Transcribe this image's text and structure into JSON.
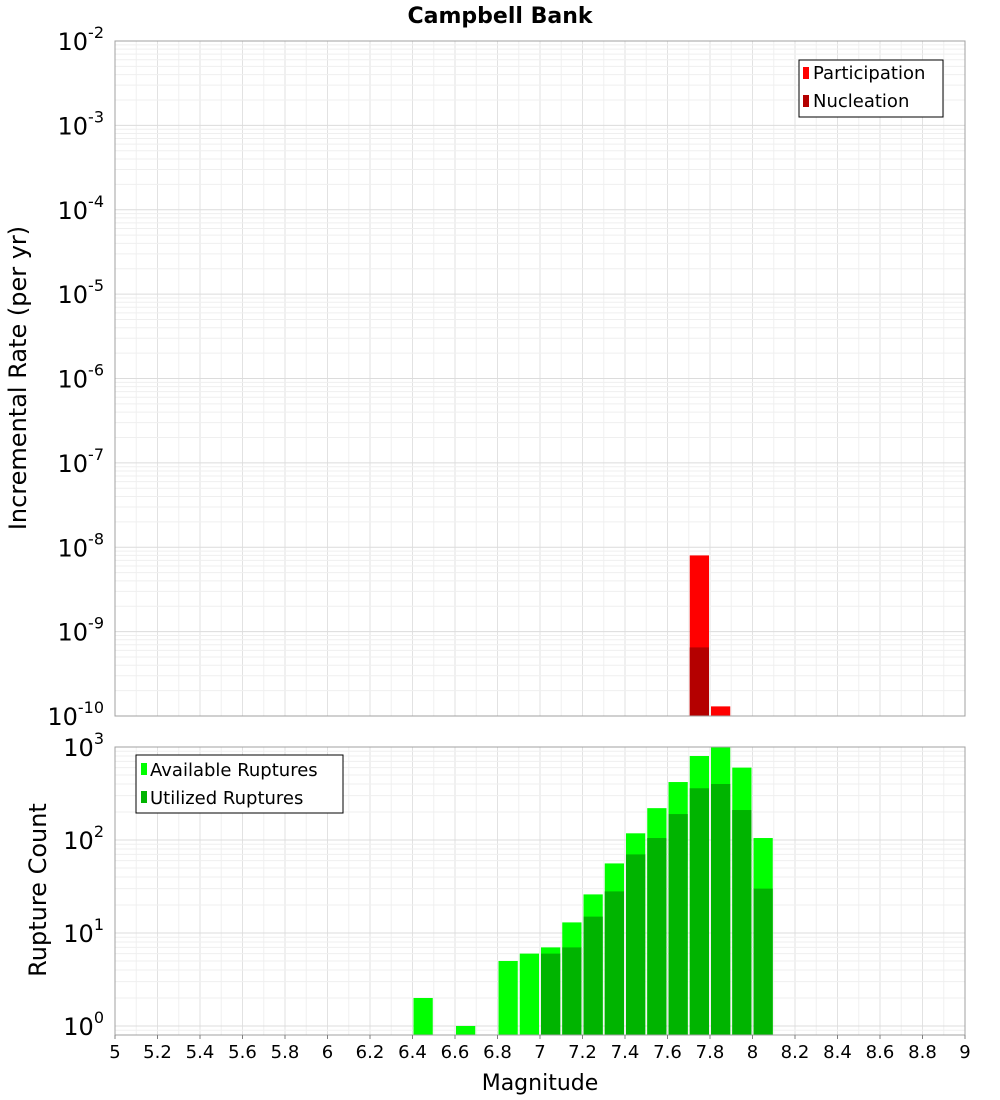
{
  "chart_data": [
    {
      "type": "bar",
      "title": "Campbell Bank",
      "ylabel": "Incremental Rate (per yr)",
      "y_scale": "log",
      "ylim": [
        1e-10,
        0.01
      ],
      "xlim": [
        5,
        9
      ],
      "grid": true,
      "bar_width": 0.1,
      "legend_position": "top-right",
      "y_ticks": [
        {
          "base": "10",
          "exp": "-10"
        },
        {
          "base": "10",
          "exp": "-9"
        },
        {
          "base": "10",
          "exp": "-8"
        },
        {
          "base": "10",
          "exp": "-7"
        },
        {
          "base": "10",
          "exp": "-6"
        },
        {
          "base": "10",
          "exp": "-5"
        },
        {
          "base": "10",
          "exp": "-4"
        },
        {
          "base": "10",
          "exp": "-3"
        },
        {
          "base": "10",
          "exp": "-2"
        }
      ],
      "series": [
        {
          "name": "Participation",
          "color": "#ff0000",
          "points": [
            {
              "x": 7.75,
              "y": 8e-09
            },
            {
              "x": 7.85,
              "y": 1.3e-10
            }
          ]
        },
        {
          "name": "Nucleation",
          "color": "#b40000",
          "points": [
            {
              "x": 7.75,
              "y": 6.5e-10
            }
          ]
        }
      ]
    },
    {
      "type": "bar",
      "ylabel": "Rupture Count",
      "xlabel": "Magnitude",
      "y_scale": "log",
      "ylim": [
        0.8,
        1000
      ],
      "xlim": [
        5,
        9
      ],
      "grid": true,
      "bar_width": 0.1,
      "legend_position": "top-left",
      "x_ticks": [
        "5",
        "5.2",
        "5.4",
        "5.6",
        "5.8",
        "6",
        "6.2",
        "6.4",
        "6.6",
        "6.8",
        "7",
        "7.2",
        "7.4",
        "7.6",
        "7.8",
        "8",
        "8.2",
        "8.4",
        "8.6",
        "8.8",
        "9"
      ],
      "y_ticks": [
        {
          "base": "10",
          "exp": "0"
        },
        {
          "base": "10",
          "exp": "1"
        },
        {
          "base": "10",
          "exp": "2"
        },
        {
          "base": "10",
          "exp": "3"
        }
      ],
      "series": [
        {
          "name": "Available Ruptures",
          "color": "#00ff00",
          "points": [
            {
              "x": 6.45,
              "y": 2
            },
            {
              "x": 6.65,
              "y": 1
            },
            {
              "x": 6.85,
              "y": 5
            },
            {
              "x": 6.95,
              "y": 6
            },
            {
              "x": 7.05,
              "y": 7
            },
            {
              "x": 7.15,
              "y": 13
            },
            {
              "x": 7.25,
              "y": 26
            },
            {
              "x": 7.35,
              "y": 56
            },
            {
              "x": 7.45,
              "y": 118
            },
            {
              "x": 7.55,
              "y": 220
            },
            {
              "x": 7.65,
              "y": 420
            },
            {
              "x": 7.75,
              "y": 800
            },
            {
              "x": 7.85,
              "y": 1000
            },
            {
              "x": 7.95,
              "y": 600
            },
            {
              "x": 8.05,
              "y": 105
            }
          ]
        },
        {
          "name": "Utilized Ruptures",
          "color": "#00b400",
          "points": [
            {
              "x": 7.05,
              "y": 6
            },
            {
              "x": 7.15,
              "y": 7
            },
            {
              "x": 7.25,
              "y": 15
            },
            {
              "x": 7.35,
              "y": 28
            },
            {
              "x": 7.45,
              "y": 70
            },
            {
              "x": 7.55,
              "y": 105
            },
            {
              "x": 7.65,
              "y": 190
            },
            {
              "x": 7.75,
              "y": 360
            },
            {
              "x": 7.85,
              "y": 400
            },
            {
              "x": 7.95,
              "y": 210
            },
            {
              "x": 8.05,
              "y": 30
            }
          ]
        }
      ]
    }
  ]
}
